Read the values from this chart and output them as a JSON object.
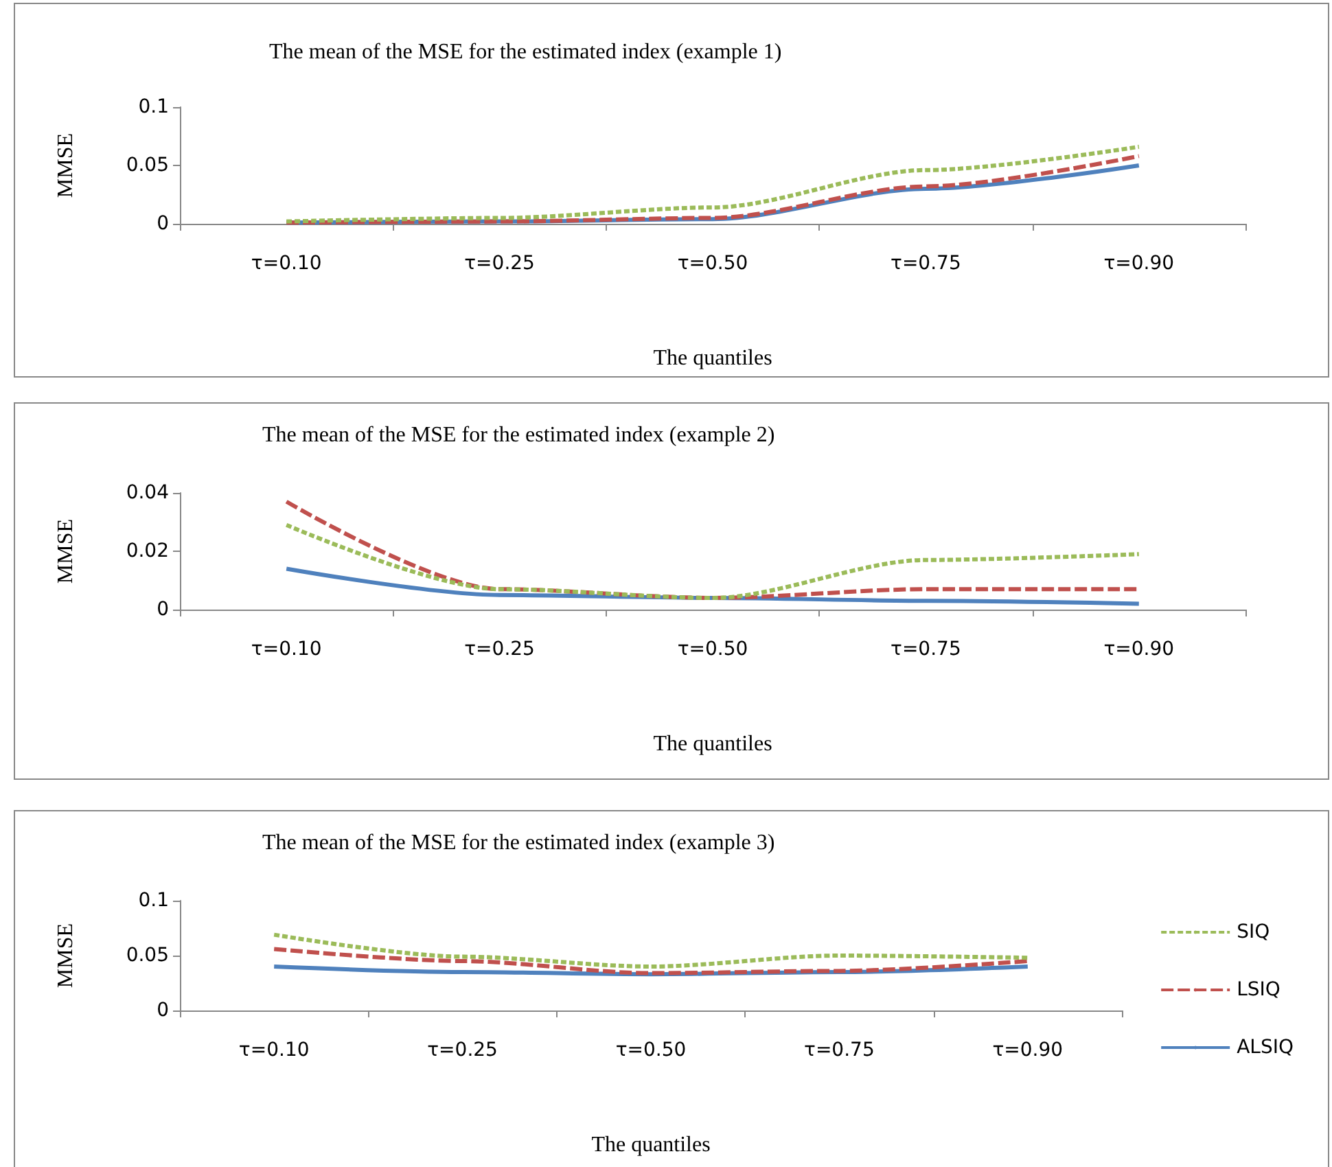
{
  "chart_data": [
    {
      "type": "line",
      "title": "The mean of the MSE for the estimated index (example 1)",
      "xlabel": "The quantiles",
      "ylabel": "MMSE",
      "categories": [
        "τ=0.10",
        "τ=0.25",
        "τ=0.50",
        "τ=0.75",
        "τ=0.90"
      ],
      "ylim": [
        0,
        0.1
      ],
      "yticks": [
        0,
        0.05,
        0.1
      ],
      "grid": false,
      "legend": false,
      "marker": "none",
      "series": [
        {
          "color": "#9bbb59",
          "line_style": "dotted",
          "values": [
            0.002,
            0.005,
            0.014,
            0.046,
            0.066
          ]
        },
        {
          "color": "#c0504d",
          "line_style": "dashed",
          "values": [
            0.001,
            0.002,
            0.005,
            0.032,
            0.058
          ]
        },
        {
          "color": "#4f81bd",
          "line_style": "solid",
          "values": [
            0.001,
            0.002,
            0.004,
            0.03,
            0.05
          ]
        }
      ]
    },
    {
      "type": "line",
      "title": "The mean of the MSE for the estimated index (example 2)",
      "xlabel": "The quantiles",
      "ylabel": "MMSE",
      "categories": [
        "τ=0.10",
        "τ=0.25",
        "τ=0.50",
        "τ=0.75",
        "τ=0.90"
      ],
      "ylim": [
        0,
        0.04
      ],
      "yticks": [
        0,
        0.02,
        0.04
      ],
      "grid": false,
      "legend": false,
      "marker": "none",
      "series": [
        {
          "color": "#9bbb59",
          "line_style": "dotted",
          "values": [
            0.029,
            0.007,
            0.004,
            0.017,
            0.019
          ]
        },
        {
          "color": "#c0504d",
          "line_style": "dashed",
          "values": [
            0.037,
            0.007,
            0.004,
            0.007,
            0.007
          ]
        },
        {
          "color": "#4f81bd",
          "line_style": "solid",
          "values": [
            0.014,
            0.005,
            0.004,
            0.003,
            0.002
          ]
        }
      ]
    },
    {
      "type": "line",
      "title": "The mean of the MSE for the estimated index (example 3)",
      "xlabel": "The quantiles",
      "ylabel": "MMSE",
      "categories": [
        "τ=0.10",
        "τ=0.25",
        "τ=0.50",
        "τ=0.75",
        "τ=0.90"
      ],
      "ylim": [
        0,
        0.1
      ],
      "yticks": [
        0,
        0.05,
        0.1
      ],
      "grid": false,
      "legend": "right",
      "marker": "none",
      "series": [
        {
          "name": "SIQ",
          "color": "#9bbb59",
          "line_style": "dotted",
          "values": [
            0.069,
            0.049,
            0.04,
            0.05,
            0.048
          ]
        },
        {
          "name": "LSIQ",
          "color": "#c0504d",
          "line_style": "dashed",
          "values": [
            0.056,
            0.045,
            0.034,
            0.036,
            0.045
          ]
        },
        {
          "name": "ALSIQ",
          "color": "#4f81bd",
          "line_style": "solid",
          "values": [
            0.04,
            0.035,
            0.033,
            0.035,
            0.04
          ]
        }
      ]
    }
  ]
}
